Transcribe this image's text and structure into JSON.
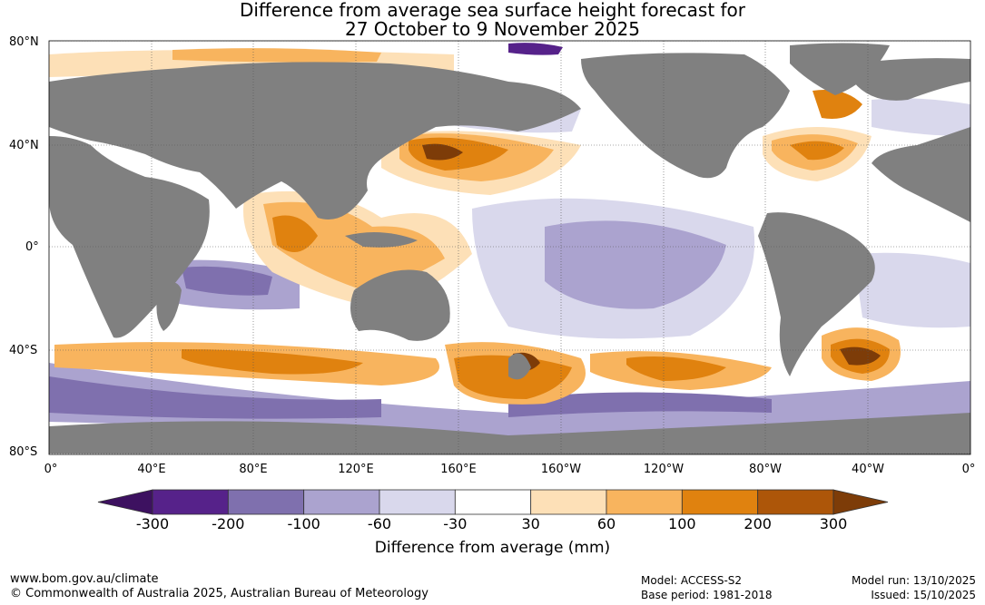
{
  "title": {
    "line1": "Difference from average sea surface height forecast for",
    "line2": "27 October to 9 November 2025"
  },
  "map": {
    "lat_labels": [
      "80°N",
      "40°N",
      "0°",
      "40°S",
      "80°S"
    ],
    "lon_labels": [
      "0°",
      "40°E",
      "80°E",
      "120°E",
      "160°E",
      "160°W",
      "120°W",
      "80°W",
      "40°W",
      "0°"
    ],
    "land_color": "#808080",
    "ocean_color": "#ffffff"
  },
  "colorbar": {
    "ticks": [
      "-300",
      "-200",
      "-100",
      "-60",
      "-30",
      "30",
      "60",
      "100",
      "200",
      "300"
    ],
    "colors": [
      "#3d1160",
      "#56228a",
      "#7f70ae",
      "#aba3cf",
      "#d9d8ec",
      "#ffffff",
      "#fde0b7",
      "#f8b45e",
      "#e0820f",
      "#ad5609",
      "#7d3c08"
    ],
    "label": "Difference from average (mm)"
  },
  "footer": {
    "website": "www.bom.gov.au/climate",
    "copyright": "© Commonwealth of Australia 2025, Australian Bureau of Meteorology",
    "model": "Model: ACCESS-S2",
    "base_period": "Base period: 1981-2018",
    "model_run": "Model run: 13/10/2025",
    "issued": "Issued: 15/10/2025"
  }
}
